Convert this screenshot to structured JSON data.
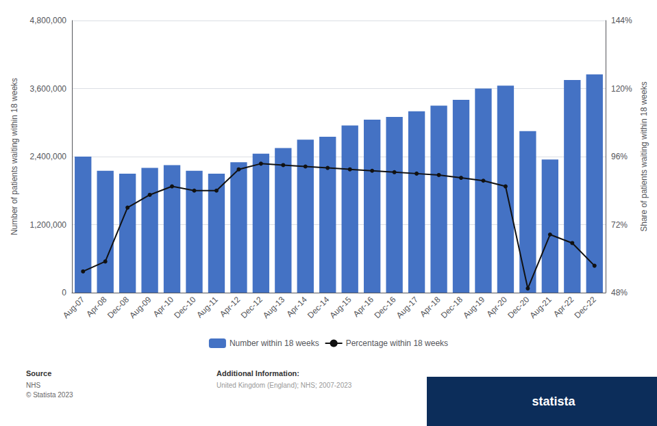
{
  "chart_data": {
    "type": "bar",
    "categories": [
      "Aug-07",
      "Apr-08",
      "Dec-08",
      "Aug-09",
      "Apr-10",
      "Dec-10",
      "Aug-11",
      "Apr-12",
      "Dec-12",
      "Aug-13",
      "Apr-14",
      "Dec-14",
      "Aug-15",
      "Apr-16",
      "Dec-16",
      "Aug-17",
      "Apr-18",
      "Dec-18",
      "Aug-19",
      "Apr-20",
      "Dec-20",
      "Aug-21",
      "Apr-22",
      "Dec-22"
    ],
    "series": [
      {
        "name": "Number within 18 weeks",
        "type": "bar",
        "color": "#4472C4",
        "values": [
          2400000,
          2150000,
          2100000,
          2200000,
          2250000,
          2150000,
          2100000,
          2300000,
          2450000,
          2550000,
          2700000,
          2750000,
          2950000,
          3050000,
          3100000,
          3200000,
          3300000,
          3400000,
          3600000,
          3650000,
          2850000,
          2350000,
          3750000,
          3850000
        ]
      },
      {
        "name": "Percentage within 18 weeks",
        "type": "line",
        "axis": "y2",
        "color": "#111111",
        "marker": "circle",
        "line_style": "solid",
        "values": [
          55.5,
          59.0,
          78.0,
          82.5,
          85.5,
          84.0,
          84.0,
          91.5,
          93.5,
          93.0,
          92.5,
          92.0,
          91.5,
          91.0,
          90.5,
          90.0,
          89.5,
          88.5,
          87.5,
          85.5,
          49.5,
          68.5,
          65.5,
          57.5
        ]
      }
    ],
    "ylabel": "Number of patients waiting within 18 weeks",
    "y2label": "Share of patients waiting within 18 weeks",
    "ylim": [
      0,
      4800000
    ],
    "yticks": [
      0,
      {
        "value": 1200000,
        "label": "1,200,000"
      },
      {
        "value": 2400000,
        "label": "2,400,000"
      },
      {
        "value": 3600000,
        "label": "3,600,000"
      },
      {
        "value": 4800000,
        "label": "4,800,000"
      }
    ],
    "y2lim": [
      48,
      144
    ],
    "y2ticks": [
      {
        "value": 48,
        "label": "48%"
      },
      {
        "value": 72,
        "label": "72%"
      },
      {
        "value": 96,
        "label": "96%"
      },
      {
        "value": 120,
        "label": "120%"
      },
      {
        "value": 144,
        "label": "144%"
      }
    ],
    "grid": true,
    "legend": "bottom",
    "annotations": [
      "Source",
      "NHS\n© Statista 2023",
      "Additional Information:",
      "United Kingdom (England); NHS; 2007-2023",
      "statista"
    ]
  }
}
